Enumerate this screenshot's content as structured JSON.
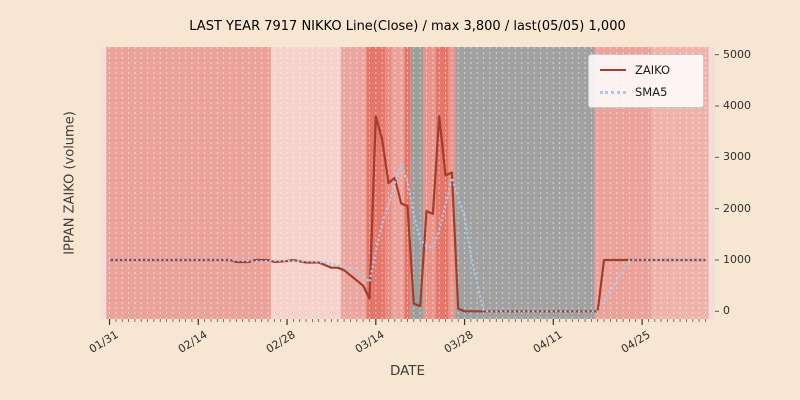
{
  "figure": {
    "title": "LAST YEAR 7917 NIKKO Line(Close) / max 3,800 / last(05/05) 1,000",
    "xlabel": "DATE",
    "ylabel": "IPPAN ZAIKO (volume)"
  },
  "colors": {
    "figure_bg": "#f7e7d2",
    "plot_bg": "#f5ded8",
    "grid": "rgba(255,255,255,0.55)",
    "tick": "#3a3a3a"
  },
  "legend": {
    "entries": [
      {
        "label": "ZAIKO",
        "color": "#a13d2a",
        "style": "solid"
      },
      {
        "label": "SMA5",
        "color": "#abc8ea",
        "style": "dotted"
      }
    ]
  },
  "chart_data": {
    "type": "line",
    "title": "LAST YEAR 7917 NIKKO Line(Close) / max 3,800 / last(05/05) 1,000",
    "xlabel": "DATE",
    "ylabel": "IPPAN ZAIKO (volume)",
    "max_value": 3800,
    "last_date": "05/05",
    "last_value": 1000,
    "ylim": [
      -150,
      5150
    ],
    "yticks": [
      0,
      1000,
      2000,
      3000,
      4000,
      5000
    ],
    "xticks": [
      "01/31",
      "02/14",
      "02/28",
      "03/14",
      "03/28",
      "04/11",
      "04/25"
    ],
    "x_start": "01/31",
    "x_end": "05/05",
    "grid": "white dashed vertical line per day",
    "legend_position": "upper right",
    "series": [
      {
        "name": "ZAIKO",
        "color": "#a13d2a",
        "style": "solid",
        "points": [
          [
            "01/31",
            1000
          ],
          [
            "02/19",
            1000
          ],
          [
            "02/20",
            960
          ],
          [
            "02/22",
            960
          ],
          [
            "02/23",
            1000
          ],
          [
            "02/25",
            1000
          ],
          [
            "02/26",
            960
          ],
          [
            "02/28",
            980
          ],
          [
            "03/01",
            1000
          ],
          [
            "03/03",
            950
          ],
          [
            "03/05",
            950
          ],
          [
            "03/06",
            900
          ],
          [
            "03/07",
            850
          ],
          [
            "03/08",
            850
          ],
          [
            "03/09",
            800
          ],
          [
            "03/10",
            700
          ],
          [
            "03/11",
            600
          ],
          [
            "03/12",
            500
          ],
          [
            "03/13",
            250
          ],
          [
            "03/14",
            3800
          ],
          [
            "03/15",
            3350
          ],
          [
            "03/16",
            2500
          ],
          [
            "03/17",
            2600
          ],
          [
            "03/18",
            2100
          ],
          [
            "03/19",
            2050
          ],
          [
            "03/20",
            150
          ],
          [
            "03/21",
            100
          ],
          [
            "03/22",
            1950
          ],
          [
            "03/23",
            1900
          ],
          [
            "03/24",
            3800
          ],
          [
            "03/25",
            2650
          ],
          [
            "03/26",
            2700
          ],
          [
            "03/27",
            50
          ],
          [
            "03/28",
            0
          ],
          [
            "04/18",
            0
          ],
          [
            "04/19",
            1000
          ],
          [
            "05/05",
            1000
          ]
        ]
      },
      {
        "name": "SMA5",
        "color": "#abc8ea",
        "style": "dotted",
        "derived": "5-day simple moving average of ZAIKO"
      }
    ],
    "bands": [
      {
        "from": "01/31",
        "to": "02/25",
        "color": "#eaa29b"
      },
      {
        "from": "02/26",
        "to": "03/08",
        "color": "#f5d2cc"
      },
      {
        "from": "03/09",
        "to": "03/12",
        "color": "#eba79f"
      },
      {
        "from": "03/13",
        "to": "03/15",
        "color": "#e5766b"
      },
      {
        "from": "03/16",
        "to": "03/16",
        "color": "#e98b80"
      },
      {
        "from": "03/17",
        "to": "03/18",
        "color": "#eaa29b"
      },
      {
        "from": "03/19",
        "to": "03/19",
        "color": "#e5766b"
      },
      {
        "from": "03/20",
        "to": "03/21",
        "color": "#9d9d9d"
      },
      {
        "from": "03/22",
        "to": "03/23",
        "color": "#ea948b"
      },
      {
        "from": "03/24",
        "to": "03/25",
        "color": "#e5766b"
      },
      {
        "from": "03/26",
        "to": "03/26",
        "color": "#ea948b"
      },
      {
        "from": "03/27",
        "to": "04/17",
        "color": "#a1a1a1"
      },
      {
        "from": "04/18",
        "to": "04/26",
        "color": "#eaa29b"
      },
      {
        "from": "04/27",
        "to": "05/05",
        "color": "#efb3ab"
      }
    ]
  }
}
